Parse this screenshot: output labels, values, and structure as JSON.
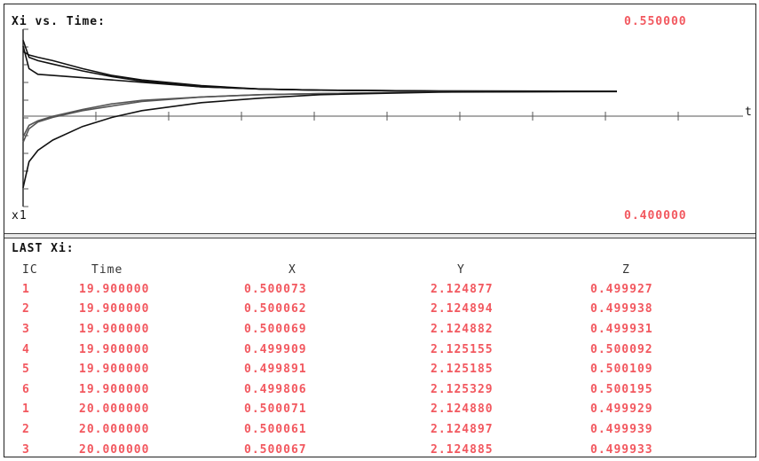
{
  "window": {
    "title": "Xi vs. Time:"
  },
  "plot": {
    "ymax_label": "0.550000",
    "ymin_label": "0.400000",
    "series_label": "x1",
    "t_axis_label": "t"
  },
  "chart_data": {
    "type": "line",
    "title": "Xi vs. Time:",
    "xlabel": "t",
    "ylabel": "x1",
    "xlim": [
      0,
      20
    ],
    "ylim": [
      0.4,
      0.55
    ],
    "grid": false,
    "series": [
      {
        "x": [
          0,
          0.2,
          0.5,
          1,
          2,
          3,
          4,
          6,
          8,
          10,
          14,
          20
        ],
        "values": [
          0.535,
          0.532,
          0.53,
          0.527,
          0.52,
          0.514,
          0.51,
          0.505,
          0.502,
          0.501,
          0.5002,
          0.5001
        ]
      },
      {
        "x": [
          0,
          0.2,
          0.5,
          1,
          2,
          3,
          4,
          6,
          8,
          10,
          14,
          20
        ],
        "values": [
          0.54,
          0.52,
          0.515,
          0.514,
          0.512,
          0.51,
          0.508,
          0.504,
          0.502,
          0.501,
          0.5002,
          0.5001
        ]
      },
      {
        "x": [
          0,
          0.2,
          0.5,
          1,
          2,
          3,
          4,
          6,
          8,
          10,
          14,
          20
        ],
        "values": [
          0.545,
          0.53,
          0.527,
          0.524,
          0.518,
          0.513,
          0.509,
          0.504,
          0.502,
          0.501,
          0.5002,
          0.5001
        ]
      },
      {
        "x": [
          0,
          0.2,
          0.5,
          1,
          2,
          3,
          4,
          6,
          8,
          10,
          14,
          20
        ],
        "values": [
          0.46,
          0.47,
          0.474,
          0.478,
          0.484,
          0.489,
          0.492,
          0.495,
          0.497,
          0.498,
          0.4995,
          0.4999
        ]
      },
      {
        "x": [
          0,
          0.2,
          0.5,
          1,
          2,
          3,
          4,
          6,
          8,
          10,
          14,
          20
        ],
        "values": [
          0.455,
          0.467,
          0.473,
          0.477,
          0.483,
          0.487,
          0.491,
          0.495,
          0.497,
          0.498,
          0.4996,
          0.4999
        ]
      },
      {
        "x": [
          0,
          0.2,
          0.5,
          1,
          2,
          3,
          4,
          6,
          8,
          10,
          14,
          20
        ],
        "values": [
          0.415,
          0.438,
          0.448,
          0.457,
          0.469,
          0.477,
          0.483,
          0.49,
          0.494,
          0.497,
          0.4993,
          0.4998
        ]
      }
    ]
  },
  "results": {
    "header": "LAST Xi:",
    "columns": [
      "IC",
      "Time",
      "X",
      "Y",
      "Z"
    ],
    "rows": [
      [
        "1",
        "19.900000",
        "0.500073",
        "2.124877",
        "0.499927"
      ],
      [
        "2",
        "19.900000",
        "0.500062",
        "2.124894",
        "0.499938"
      ],
      [
        "3",
        "19.900000",
        "0.500069",
        "2.124882",
        "0.499931"
      ],
      [
        "4",
        "19.900000",
        "0.499909",
        "2.125155",
        "0.500092"
      ],
      [
        "5",
        "19.900000",
        "0.499891",
        "2.125185",
        "0.500109"
      ],
      [
        "6",
        "19.900000",
        "0.499806",
        "2.125329",
        "0.500195"
      ],
      [
        "1",
        "20.000000",
        "0.500071",
        "2.124880",
        "0.499929"
      ],
      [
        "2",
        "20.000000",
        "0.500061",
        "2.124897",
        "0.499939"
      ],
      [
        "3",
        "20.000000",
        "0.500067",
        "2.124885",
        "0.499933"
      ]
    ]
  }
}
